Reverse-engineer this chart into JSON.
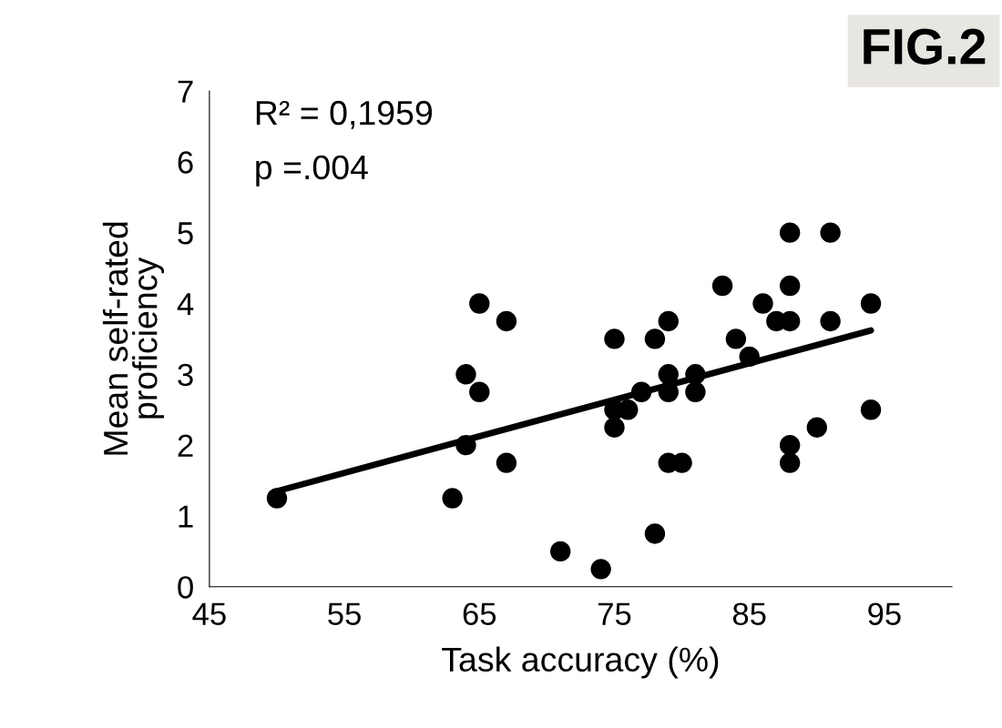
{
  "chart_data": {
    "type": "scatter",
    "title": "FIG.2",
    "xlabel": "Task accuracy (%)",
    "ylabel": "Mean self-rated\nproficiency",
    "annotations": [
      "R² = 0,1959",
      "p =.004"
    ],
    "xlim": [
      45,
      100
    ],
    "xticks": [
      45,
      55,
      65,
      75,
      85,
      95
    ],
    "ylim": [
      0,
      7
    ],
    "yticks": [
      0,
      1,
      2,
      3,
      4,
      5,
      6,
      7
    ],
    "grid": false,
    "legend": false,
    "marker": "circle",
    "series": [
      {
        "color": "#000000",
        "x": [
          50,
          65,
          67,
          75,
          64,
          65,
          75,
          76,
          77,
          75,
          64,
          67,
          63,
          71,
          74,
          88,
          91,
          83,
          88,
          86,
          94,
          87,
          88,
          91,
          78,
          79,
          84,
          85,
          79,
          81,
          79,
          81,
          94,
          90,
          88,
          88,
          79,
          80,
          78
        ],
        "values": [
          1.25,
          4,
          3.75,
          3.5,
          3,
          2.75,
          2.5,
          2.5,
          2.75,
          2.25,
          2,
          1.75,
          1.25,
          0.5,
          0.25,
          5,
          5,
          4.25,
          4.25,
          4,
          4,
          3.75,
          3.75,
          3.75,
          3.5,
          3.75,
          3.5,
          3.25,
          3,
          3,
          2.75,
          2.75,
          2.5,
          2.25,
          2,
          1.75,
          1.75,
          1.75,
          0.75
        ]
      },
      {
        "type": "line",
        "color": "#000000",
        "marker": "none",
        "line_style": "solid",
        "x": [
          50,
          94
        ],
        "values": [
          1.35,
          3.62
        ]
      }
    ]
  }
}
